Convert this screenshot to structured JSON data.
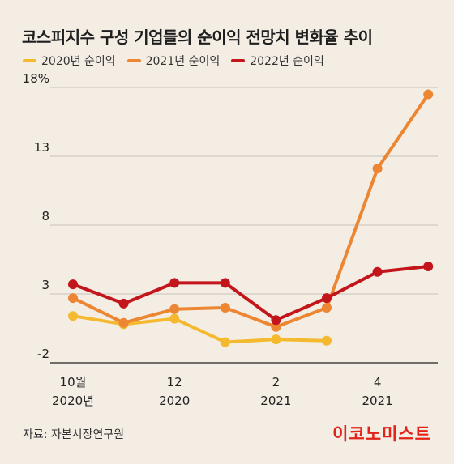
{
  "header": {
    "title": "코스피지수 구성 기업들의 순이익 전망치 변화율 추이"
  },
  "footer": {
    "source": "자료: 자본시장연구원",
    "brand": "이코노미스트"
  },
  "chart_data": {
    "type": "line",
    "title": "코스피지수 구성 기업들의 순이익 전망치 변화율 추이",
    "xlabel": "",
    "ylabel": "",
    "ylim": [
      -2,
      18
    ],
    "y_ticks": [
      {
        "value": 18,
        "label": "18%"
      },
      {
        "value": 13,
        "label": "13"
      },
      {
        "value": 8,
        "label": "8"
      },
      {
        "value": 3,
        "label": "3"
      },
      {
        "value": -2,
        "label": "-2"
      }
    ],
    "x_ticks": [
      {
        "index": 0,
        "lines": [
          "10월",
          "2020년"
        ]
      },
      {
        "index": 2,
        "lines": [
          "12",
          "2020"
        ]
      },
      {
        "index": 4,
        "lines": [
          "2",
          "2021"
        ]
      },
      {
        "index": 6,
        "lines": [
          "4",
          "2021"
        ]
      }
    ],
    "grid": true,
    "legend_position": "top-left",
    "series": [
      {
        "name": "2020년 순이익",
        "color": "#f4b92f",
        "x": [
          0,
          1,
          2,
          3,
          4,
          5
        ],
        "values": [
          1.4,
          0.8,
          1.2,
          -0.5,
          -0.3,
          -0.4
        ]
      },
      {
        "name": "2021년 순이익",
        "color": "#ec8632",
        "x": [
          0,
          1,
          2,
          3,
          4,
          5,
          6,
          7
        ],
        "values": [
          2.7,
          0.9,
          1.9,
          2.0,
          0.6,
          2.0,
          12.1,
          17.5
        ]
      },
      {
        "name": "2022년 순이익",
        "color": "#c3161c",
        "x": [
          0,
          1,
          2,
          3,
          4,
          5,
          6,
          7
        ],
        "values": [
          3.7,
          2.3,
          3.8,
          3.8,
          1.1,
          2.7,
          4.6,
          5.0
        ]
      }
    ]
  }
}
